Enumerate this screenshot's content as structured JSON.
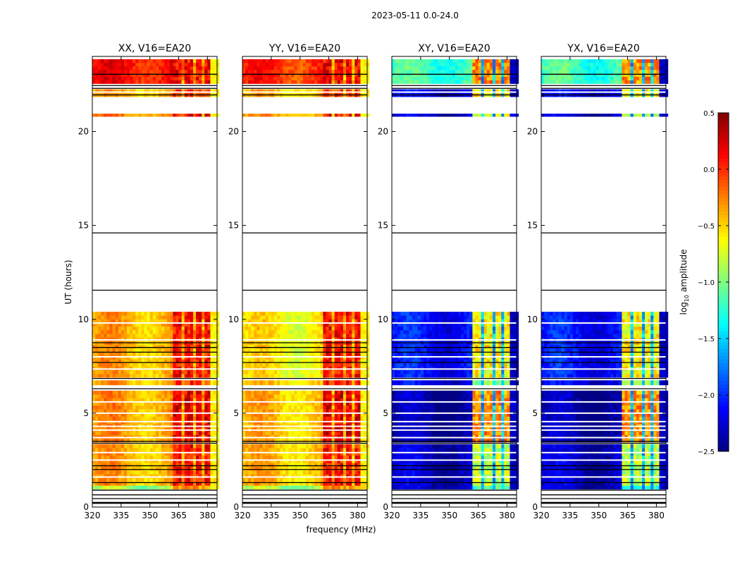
{
  "chart_data": {
    "type": "heatmap",
    "title": "2023-05-11 0.0-24.0",
    "xlabel": "frequency (MHz)",
    "ylabel": "UT (hours)",
    "xlim": [
      320,
      385
    ],
    "ylim": [
      0,
      24
    ],
    "xticks": [
      "320",
      "335",
      "350",
      "365",
      "380"
    ],
    "xtick_values": [
      320,
      335,
      350,
      365,
      380
    ],
    "yticks": [
      "0",
      "5",
      "10",
      "15",
      "20"
    ],
    "ytick_values": [
      0,
      5,
      10,
      15,
      20
    ],
    "colorbar": {
      "label_prefix": "log",
      "label_sub": "10",
      "label_suffix": " amplitude",
      "range": [
        -2.5,
        0.5
      ],
      "ticks": [
        "0.5",
        "0.0",
        "−0.5",
        "−1.0",
        "−1.5",
        "−2.0",
        "−2.5"
      ],
      "tick_values": [
        0.5,
        0.0,
        -0.5,
        -1.0,
        -1.5,
        -2.0,
        -2.5
      ],
      "colormap": "jet"
    },
    "time_segments_hours": [
      [
        0.95,
        1.15
      ],
      [
        1.15,
        3.35
      ],
      [
        3.45,
        6.2
      ],
      [
        6.5,
        6.75
      ],
      [
        6.9,
        10.4
      ],
      [
        20.8,
        20.95
      ],
      [
        21.85,
        22.25
      ],
      [
        22.55,
        23.85
      ]
    ],
    "band_channels_mhz": [
      [
        362,
        367
      ],
      [
        368,
        372.5
      ],
      [
        373.5,
        377.5
      ],
      [
        378.5,
        382
      ]
    ],
    "white_lines_hours": [
      1.6,
      2.5,
      2.9,
      3.7,
      4.1,
      4.3,
      4.55,
      5.0,
      5.6,
      7.35,
      8.0,
      8.9,
      9.8,
      22.1
    ],
    "black_lines_hours": [
      0.2,
      0.25,
      0.45,
      0.65,
      0.9,
      1.3,
      2.0,
      2.2,
      3.4,
      3.5,
      6.3,
      6.85,
      7.7,
      8.25,
      8.5,
      8.75,
      11.55,
      14.6,
      21.95,
      22.3,
      22.45,
      23.05
    ],
    "panels": [
      {
        "title": "XX, V16=EA20",
        "continuum": [
          -0.9,
          -0.4,
          -0.35,
          -0.4,
          -0.4,
          -0.3,
          -0.4,
          0.1
        ],
        "band": [
          -0.4,
          0.1,
          0.2,
          0.0,
          0.1,
          0.1,
          0.0,
          0.15
        ],
        "gap": -0.3,
        "edge": -0.6
      },
      {
        "title": "YY, V16=EA20",
        "continuum": [
          -0.9,
          -0.45,
          -0.45,
          -0.5,
          -0.6,
          -0.4,
          -0.45,
          0.0
        ],
        "band": [
          -0.4,
          0.05,
          0.2,
          0.0,
          0.1,
          0.1,
          0.0,
          0.15
        ],
        "gap": -0.35,
        "edge": -0.6
      },
      {
        "title": "XY, V16=EA20",
        "continuum": [
          -2.3,
          -2.3,
          -2.4,
          -2.2,
          -2.1,
          -2.3,
          -2.2,
          -1.2
        ],
        "band": [
          -1.2,
          -0.8,
          -0.3,
          -0.9,
          -0.6,
          -0.7,
          -0.6,
          -0.3
        ],
        "gap": -1.6,
        "edge": -2.3
      },
      {
        "title": "YX, V16=EA20",
        "continuum": [
          -2.3,
          -2.3,
          -2.4,
          -2.2,
          -2.1,
          -2.3,
          -2.2,
          -1.2
        ],
        "band": [
          -1.2,
          -0.8,
          -0.3,
          -0.9,
          -0.6,
          -0.7,
          -0.6,
          -0.3
        ],
        "gap": -1.6,
        "edge": -2.3
      }
    ]
  }
}
